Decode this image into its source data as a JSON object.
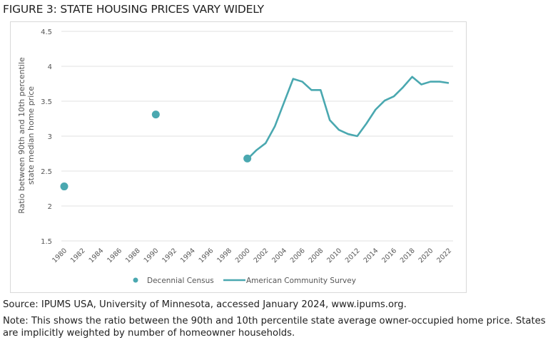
{
  "title": "FIGURE 3: STATE HOUSING PRICES VARY WIDELY",
  "chart_data": {
    "type": "line",
    "title": "",
    "xlabel": "",
    "ylabel": "Ratio between 90th and 10th percentile state median home price",
    "ylim": [
      1.5,
      4.5
    ],
    "yticks": [
      "1.5",
      "2",
      "2.5",
      "3",
      "3.5",
      "4",
      "4.5"
    ],
    "xlim": [
      1980,
      2022
    ],
    "xticks": [
      "1980",
      "1982",
      "1984",
      "1986",
      "1988",
      "1990",
      "1992",
      "1994",
      "1996",
      "1998",
      "2000",
      "2002",
      "2004",
      "2006",
      "2008",
      "2010",
      "2012",
      "2014",
      "2016",
      "2018",
      "2020",
      "2022"
    ],
    "grid": true,
    "legend": "bottom",
    "color": "#4aa8b0",
    "series": [
      {
        "name": "Decennial Census",
        "kind": "scatter",
        "x": [
          1980,
          1990,
          2000
        ],
        "y": [
          2.28,
          3.31,
          2.68
        ]
      },
      {
        "name": "American Community Survey",
        "kind": "line",
        "x": [
          2000,
          2001,
          2002,
          2003,
          2004,
          2005,
          2006,
          2007,
          2008,
          2009,
          2010,
          2011,
          2012,
          2013,
          2014,
          2015,
          2016,
          2017,
          2018,
          2019,
          2020,
          2021,
          2022
        ],
        "y": [
          2.67,
          2.8,
          2.9,
          3.14,
          3.48,
          3.82,
          3.78,
          3.66,
          3.66,
          3.23,
          3.09,
          3.03,
          3.0,
          3.18,
          3.38,
          3.51,
          3.57,
          3.7,
          3.85,
          3.74,
          3.78,
          3.78,
          3.76
        ]
      }
    ]
  },
  "source": "Source: IPUMS USA, University of Minnesota, accessed January 2024, www.ipums.org.",
  "note": "Note: This shows the ratio between the 90th and 10th percentile state average owner-occupied home price. States are implicitly weighted by number of homeowner households."
}
